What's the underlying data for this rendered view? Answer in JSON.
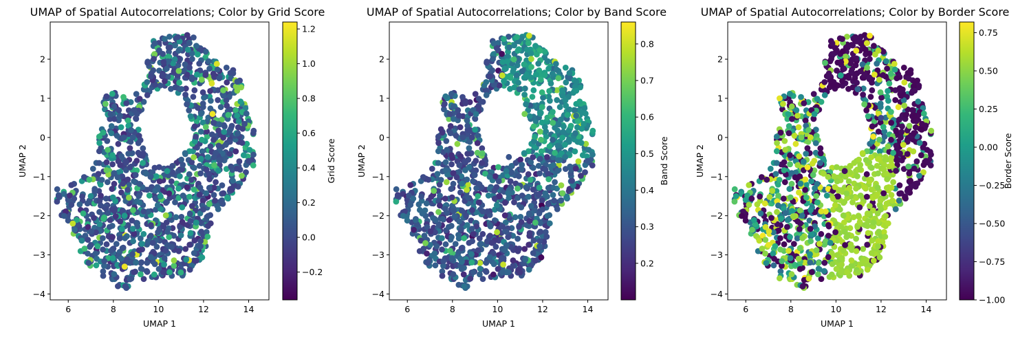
{
  "figure": {
    "background": "#ffffff",
    "colormap_stops": [
      "#440154",
      "#482878",
      "#3e4989",
      "#31688e",
      "#26828e",
      "#1f9e89",
      "#35b779",
      "#6ece58",
      "#b5de2b",
      "#fde725"
    ]
  },
  "chart_data": [
    {
      "type": "scatter",
      "title": "UMAP of Spatial Autocorrelations; Color by Grid Score",
      "xlabel": "UMAP 1",
      "ylabel": "UMAP 2",
      "xlim": [
        5.2,
        14.9
      ],
      "ylim": [
        -4.15,
        2.95
      ],
      "xticks": [
        6,
        8,
        10,
        12,
        14
      ],
      "yticks": [
        -4,
        -3,
        -2,
        -1,
        0,
        1,
        2
      ],
      "grid": false,
      "colorbar": {
        "label": "Grid Score",
        "colormap": "viridis",
        "range": [
          -0.36,
          1.24
        ],
        "ticks": [
          -0.2,
          0.0,
          0.2,
          0.4,
          0.6,
          0.8,
          1.0,
          1.2
        ],
        "tick_labels": [
          "−0.2",
          "0.0",
          "0.2",
          "0.4",
          "0.6",
          "0.8",
          "1.0",
          "1.2"
        ]
      },
      "color_model": "grid",
      "points": [
        [
          8.2,
          -3.8,
          0.0
        ],
        [
          9.0,
          -3.2,
          0.2
        ],
        [
          8.5,
          -2.0,
          0.5
        ],
        [
          10.9,
          1.7,
          0.9
        ],
        [
          12.4,
          0.6,
          1.2
        ],
        [
          11.0,
          -2.5,
          0.3
        ],
        [
          8.5,
          -3.3,
          1.2
        ],
        [
          6.2,
          -2.2,
          1.1
        ],
        [
          13.5,
          0.1,
          0.1
        ],
        [
          7.0,
          -1.5,
          0.4
        ]
      ]
    },
    {
      "type": "scatter",
      "title": "UMAP of Spatial Autocorrelations; Color by Band Score",
      "xlabel": "UMAP 1",
      "ylabel": "UMAP 2",
      "xlim": [
        5.2,
        14.9
      ],
      "ylim": [
        -4.15,
        2.95
      ],
      "xticks": [
        6,
        8,
        10,
        12,
        14
      ],
      "yticks": [
        -4,
        -3,
        -2,
        -1,
        0,
        1,
        2
      ],
      "grid": false,
      "colorbar": {
        "label": "Band Score",
        "colormap": "viridis",
        "range": [
          0.1,
          0.86
        ],
        "ticks": [
          0.2,
          0.3,
          0.4,
          0.5,
          0.6,
          0.7,
          0.8
        ],
        "tick_labels": [
          "0.2",
          "0.3",
          "0.4",
          "0.5",
          "0.6",
          "0.7",
          "0.8"
        ]
      },
      "color_model": "band",
      "points": [
        [
          11.5,
          1.8,
          0.6
        ],
        [
          11.2,
          0.6,
          0.7
        ],
        [
          10.5,
          -0.5,
          0.3
        ],
        [
          8.5,
          -3.5,
          0.2
        ],
        [
          6.8,
          -2.7,
          0.7
        ],
        [
          13.0,
          -0.5,
          0.4
        ],
        [
          11.4,
          2.6,
          0.8
        ],
        [
          9.0,
          0.2,
          0.5
        ]
      ]
    },
    {
      "type": "scatter",
      "title": "UMAP of Spatial Autocorrelations; Color by Border Score",
      "xlabel": "UMAP 1",
      "ylabel": "UMAP 2",
      "xlim": [
        5.2,
        14.9
      ],
      "ylim": [
        -4.15,
        2.95
      ],
      "xticks": [
        6,
        8,
        10,
        12,
        14
      ],
      "yticks": [
        -4,
        -3,
        -2,
        -1,
        0,
        1,
        2
      ],
      "grid": false,
      "colorbar": {
        "label": "Border Score",
        "colormap": "viridis",
        "range": [
          -1.0,
          0.82
        ],
        "ticks": [
          -1.0,
          -0.75,
          -0.5,
          -0.25,
          0.0,
          0.25,
          0.5,
          0.75
        ],
        "tick_labels": [
          "−1.00",
          "−0.75",
          "−0.50",
          "−0.25",
          "0.00",
          "0.25",
          "0.50",
          "0.75"
        ]
      },
      "color_model": "border",
      "points": [
        [
          10.3,
          2.2,
          -1.0
        ],
        [
          13.8,
          0.2,
          -1.0
        ],
        [
          11.0,
          -2.0,
          0.55
        ],
        [
          7.5,
          1.0,
          0.75
        ],
        [
          11.5,
          2.6,
          0.8
        ],
        [
          7.5,
          -3.6,
          0.55
        ],
        [
          8.5,
          -2.0,
          -0.3
        ],
        [
          12.0,
          0.5,
          -0.6
        ]
      ]
    }
  ]
}
